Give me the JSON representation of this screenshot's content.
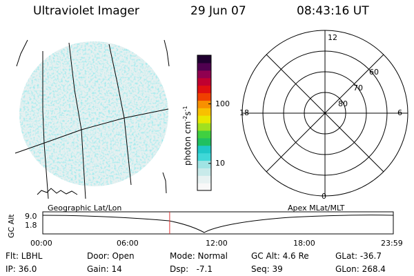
{
  "header": {
    "instrument": "Ultraviolet Imager",
    "date": "29 Jun 07",
    "time": "08:43:16 UT"
  },
  "colorbar": {
    "unit_label": "photon cm",
    "unit_exp1": "-2",
    "unit_s": "s",
    "unit_exp2": "-1",
    "ticks": [
      {
        "label": "100",
        "frac": 0.64
      },
      {
        "label": "10",
        "frac": 0.2
      }
    ],
    "colors": [
      "#f8f8f8",
      "#e8f2f2",
      "#c8eaea",
      "#a0e4e4",
      "#40d8d8",
      "#20c8c8",
      "#20c060",
      "#40d040",
      "#a0e020",
      "#e8e800",
      "#f8c000",
      "#f89000",
      "#f04000",
      "#e01010",
      "#c00030",
      "#900050",
      "#500050",
      "#200030"
    ]
  },
  "polar_plot": {
    "lat_labels": [
      "80",
      "70",
      "60"
    ],
    "mlt_labels": {
      "top": "12",
      "bottom": "0",
      "left": "18",
      "right": "6"
    }
  },
  "timeline": {
    "axis_title": "GC Alt",
    "left_label": "Geographic Lat/Lon",
    "right_label": "Apex MLat/MLT",
    "y_ticks": [
      "9.0",
      "1.8"
    ],
    "x_ticks": [
      "00:00",
      "06:00",
      "12:00",
      "18:00",
      "23:59"
    ],
    "current_time_frac": 0.362,
    "accent": "#e03030"
  },
  "status": {
    "flt": "Flt: LBHL",
    "ip": "IP: 36.0",
    "door": "Door: Open",
    "gain": "Gain: 14",
    "mode": "Mode: Normal",
    "dsp": "Dsp:   -7.1",
    "gc_alt": "GC Alt: 4.6 Re",
    "seq": "Seq: 39",
    "glat": "GLat: -36.7",
    "glon": "GLon: 268.4"
  }
}
